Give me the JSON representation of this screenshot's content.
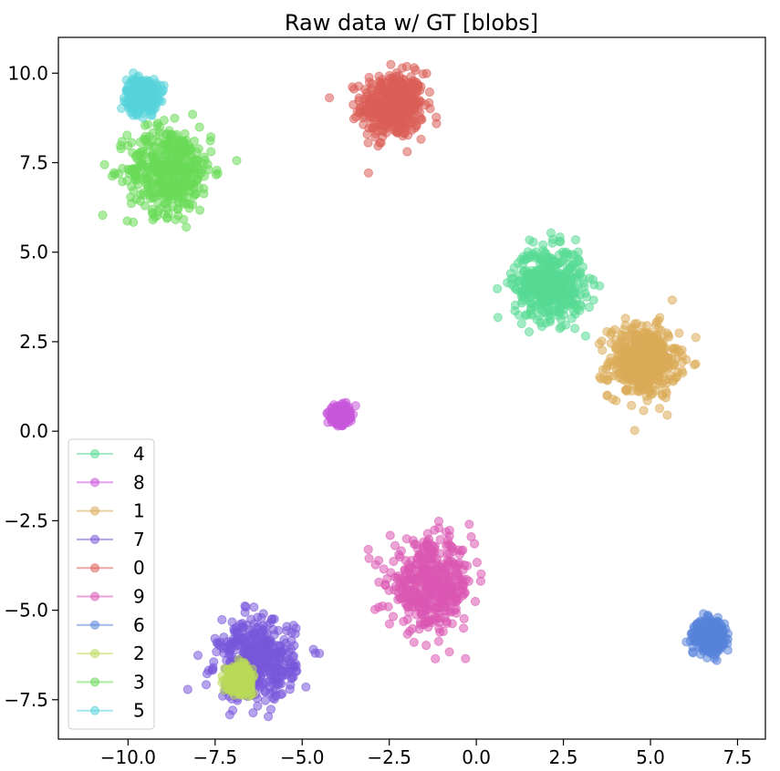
{
  "chart_data": {
    "type": "scatter",
    "title": "Raw data w/ GT [blobs]",
    "xlabel": "",
    "ylabel": "",
    "xlim": [
      -12.0,
      8.3
    ],
    "ylim": [
      -8.6,
      11.0
    ],
    "x_ticks": [
      -10.0,
      -7.5,
      -5.0,
      -2.5,
      0.0,
      2.5,
      5.0,
      7.5
    ],
    "x_tick_labels": [
      "−10.0",
      "−7.5",
      "−5.0",
      "−2.5",
      "0.0",
      "2.5",
      "5.0",
      "7.5"
    ],
    "y_ticks": [
      10.0,
      7.5,
      5.0,
      2.5,
      0.0,
      -2.5,
      -5.0,
      -7.5
    ],
    "y_tick_labels": [
      "10.0",
      "7.5",
      "5.0",
      "2.5",
      "0.0",
      "−2.5",
      "−5.0",
      "−7.5"
    ],
    "grid": false,
    "legend_position": "lower-left",
    "legend_order": [
      "4",
      "8",
      "1",
      "7",
      "0",
      "9",
      "6",
      "2",
      "3",
      "5"
    ],
    "series": [
      {
        "name": "0",
        "color": "#db5f57",
        "center": [
          -2.4,
          9.1
        ],
        "spread": 0.45
      },
      {
        "name": "1",
        "color": "#dbac57",
        "center": [
          4.8,
          1.95
        ],
        "spread": 0.5
      },
      {
        "name": "2",
        "color": "#b9db57",
        "center": [
          -6.8,
          -6.9
        ],
        "spread": 0.17
      },
      {
        "name": "3",
        "color": "#6adb57",
        "center": [
          -8.8,
          7.3
        ],
        "spread": 0.6
      },
      {
        "name": "4",
        "color": "#57db94",
        "center": [
          2.1,
          4.1
        ],
        "spread": 0.5
      },
      {
        "name": "5",
        "color": "#57d3db",
        "center": [
          -9.6,
          9.4
        ],
        "spread": 0.22
      },
      {
        "name": "6",
        "color": "#5784db",
        "center": [
          6.7,
          -5.7
        ],
        "spread": 0.2
      },
      {
        "name": "7",
        "color": "#7957db",
        "center": [
          -6.3,
          -6.4
        ],
        "spread": 0.55
      },
      {
        "name": "8",
        "color": "#c957db",
        "center": [
          -3.9,
          0.45
        ],
        "spread": 0.12
      },
      {
        "name": "9",
        "color": "#db57b2",
        "center": [
          -1.3,
          -4.3
        ],
        "spread": 0.6
      }
    ]
  }
}
